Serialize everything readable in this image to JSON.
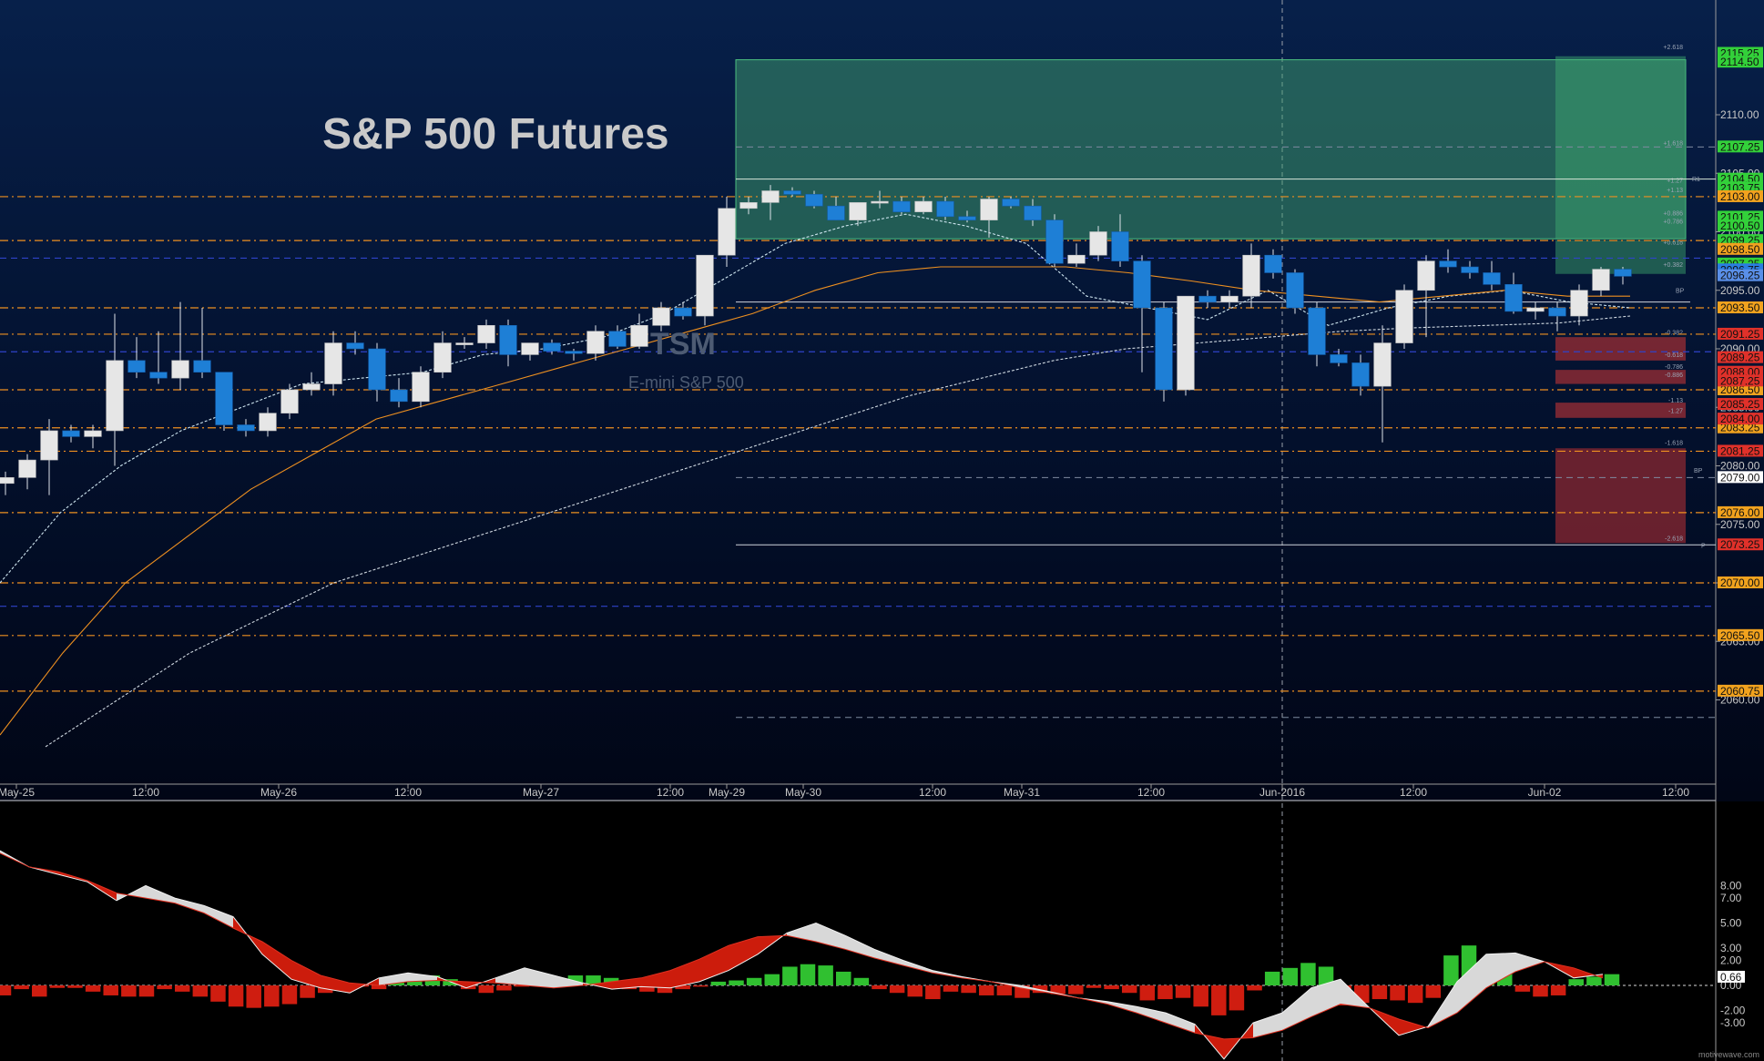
{
  "title": "S&P 500 Futures",
  "watermark": {
    "line1": "TSM",
    "line2": "E-mini S&P 500"
  },
  "footer": "motivewave.com",
  "colors": {
    "bull": "#e6e6e6",
    "bear": "#1e7fd6",
    "orange": "#ee9020",
    "blue": "#2f43c9",
    "green": "#30c030",
    "red": "#cf1d10"
  },
  "chart_data": [
    {
      "type": "candlestick",
      "title": "S&P 500 Futures",
      "xlabel": "",
      "ylabel": "",
      "ylim": [
        2056,
        2120
      ],
      "x_ticks": [
        "May-25",
        "12:00",
        "May-26",
        "12:00",
        "May-27",
        "12:00",
        "May-29",
        "May-30",
        "12:00",
        "May-31",
        "12:00",
        "Jun-2016",
        "12:00",
        "Jun-02",
        "12:00"
      ],
      "y_ticks": [
        "2060.00",
        "2065.00",
        "2070.00",
        "2075.00",
        "2080.00",
        "2085.00",
        "2090.00",
        "2095.00",
        "2100.00",
        "2105.00",
        "2110.00"
      ],
      "grid": false,
      "price_levels": [
        2115.25,
        2114.5,
        2107.25,
        2104.5,
        2103.75,
        2103.0,
        2101.25,
        2100.5,
        2099.25,
        2098.5,
        2097.25,
        2096.75,
        2096.25,
        2093.5,
        2091.25,
        2089.25,
        2088.0,
        2087.25,
        2086.5,
        2085.25,
        2084.0,
        2083.25,
        2081.25,
        2079.0,
        2076.0,
        2073.25,
        2070.0,
        2065.5,
        2060.75
      ],
      "candles_ohlc": [
        [
          2078.5,
          2079.5,
          2077.5,
          2079.0
        ],
        [
          2079.0,
          2081.0,
          2078.0,
          2080.5
        ],
        [
          2080.5,
          2084.0,
          2077.5,
          2083.0
        ],
        [
          2083.0,
          2083.5,
          2082.0,
          2082.5
        ],
        [
          2082.5,
          2083.5,
          2081.5,
          2083.0
        ],
        [
          2083.0,
          2093.0,
          2080.0,
          2089.0
        ],
        [
          2089.0,
          2091.0,
          2087.5,
          2088.0
        ],
        [
          2088.0,
          2091.5,
          2087.0,
          2087.5
        ],
        [
          2087.5,
          2094.0,
          2086.5,
          2089.0
        ],
        [
          2089.0,
          2093.5,
          2087.5,
          2088.0
        ],
        [
          2088.0,
          2087.0,
          2083.0,
          2083.5
        ],
        [
          2083.5,
          2084.0,
          2082.5,
          2083.0
        ],
        [
          2083.0,
          2085.0,
          2082.5,
          2084.5
        ],
        [
          2084.5,
          2087.0,
          2084.0,
          2086.5
        ],
        [
          2086.5,
          2088.0,
          2086.0,
          2087.0
        ],
        [
          2087.0,
          2091.5,
          2086.0,
          2090.5
        ],
        [
          2090.5,
          2091.5,
          2089.5,
          2090.0
        ],
        [
          2090.0,
          2090.5,
          2085.5,
          2086.5
        ],
        [
          2086.5,
          2087.5,
          2085.0,
          2085.5
        ],
        [
          2085.5,
          2088.5,
          2085.0,
          2088.0
        ],
        [
          2088.0,
          2091.5,
          2087.5,
          2090.5
        ],
        [
          2090.5,
          2091.0,
          2090.0,
          2090.5
        ],
        [
          2090.5,
          2092.5,
          2090.0,
          2092.0
        ],
        [
          2092.0,
          2092.5,
          2088.5,
          2089.5
        ],
        [
          2089.5,
          2090.5,
          2089.0,
          2090.5
        ],
        [
          2090.5,
          2090.8,
          2089.5,
          2089.8
        ],
        [
          2089.8,
          2090.0,
          2089.0,
          2089.6
        ],
        [
          2089.6,
          2092.0,
          2089.0,
          2091.5
        ],
        [
          2091.5,
          2092.0,
          2090.0,
          2090.2
        ],
        [
          2090.2,
          2093.0,
          2090.0,
          2092.0
        ],
        [
          2092.0,
          2094.0,
          2091.5,
          2093.5
        ],
        [
          2093.5,
          2094.0,
          2092.5,
          2092.8
        ],
        [
          2092.8,
          2098.0,
          2092.0,
          2098.0
        ],
        [
          2098.0,
          2103.0,
          2097.0,
          2102.0
        ],
        [
          2102.0,
          2103.0,
          2101.5,
          2102.5
        ],
        [
          2102.5,
          2104.0,
          2101.0,
          2103.5
        ],
        [
          2103.5,
          2103.8,
          2103.0,
          2103.2
        ],
        [
          2103.2,
          2103.5,
          2102.0,
          2102.2
        ],
        [
          2102.2,
          2103.0,
          2101.0,
          2101.0
        ],
        [
          2101.0,
          2102.5,
          2100.5,
          2102.5
        ],
        [
          2102.5,
          2103.5,
          2102.0,
          2102.6
        ],
        [
          2102.6,
          2103.0,
          2101.5,
          2101.7
        ],
        [
          2101.7,
          2103.0,
          2101.5,
          2102.6
        ],
        [
          2102.6,
          2103.0,
          2101.0,
          2101.3
        ],
        [
          2101.3,
          2101.8,
          2100.8,
          2101.0
        ],
        [
          2101.0,
          2103.0,
          2099.5,
          2102.8
        ],
        [
          2102.8,
          2103.0,
          2102.0,
          2102.2
        ],
        [
          2102.2,
          2102.8,
          2100.5,
          2101.0
        ],
        [
          2101.0,
          2101.5,
          2097.0,
          2097.3
        ],
        [
          2097.3,
          2099.0,
          2097.0,
          2098.0
        ],
        [
          2098.0,
          2100.5,
          2097.5,
          2100.0
        ],
        [
          2100.0,
          2101.5,
          2097.0,
          2097.5
        ],
        [
          2097.5,
          2098.0,
          2088.0,
          2093.5
        ],
        [
          2093.5,
          2094.0,
          2085.5,
          2086.5
        ],
        [
          2086.5,
          2094.5,
          2086.0,
          2094.5
        ],
        [
          2094.5,
          2095.0,
          2093.5,
          2094.0
        ],
        [
          2094.0,
          2095.0,
          2093.5,
          2094.5
        ],
        [
          2094.5,
          2099.0,
          2093.5,
          2098.0
        ],
        [
          2098.0,
          2098.5,
          2096.0,
          2096.5
        ],
        [
          2096.5,
          2096.8,
          2093.0,
          2093.5
        ],
        [
          2093.5,
          2094.0,
          2088.5,
          2089.5
        ],
        [
          2089.5,
          2090.0,
          2088.5,
          2088.8
        ],
        [
          2088.8,
          2089.5,
          2086.0,
          2086.8
        ],
        [
          2086.8,
          2092.0,
          2082.0,
          2090.5
        ],
        [
          2090.5,
          2095.5,
          2090.0,
          2095.0
        ],
        [
          2095.0,
          2098.0,
          2091.0,
          2097.5
        ],
        [
          2097.5,
          2098.5,
          2096.5,
          2097.0
        ],
        [
          2097.0,
          2097.5,
          2096.0,
          2096.5
        ],
        [
          2096.5,
          2097.5,
          2095.0,
          2095.5
        ],
        [
          2095.5,
          2096.5,
          2093.0,
          2093.2
        ],
        [
          2093.2,
          2094.0,
          2092.5,
          2093.5
        ],
        [
          2093.5,
          2094.0,
          2091.5,
          2092.8
        ],
        [
          2092.8,
          2095.5,
          2092.0,
          2095.0
        ],
        [
          2095.0,
          2097.0,
          2094.5,
          2096.8
        ],
        [
          2096.8,
          2097.0,
          2095.5,
          2096.2
        ]
      ],
      "moving_averages": [
        {
          "color": "#cfe6f0",
          "values": [
            2070,
            2076,
            2080,
            2083,
            2085,
            2087,
            2087.5,
            2088,
            2089.5,
            2090,
            2091,
            2093,
            2096,
            2099,
            2100.5,
            2101.5,
            2100.5,
            2099,
            2094.5,
            2093.5,
            2092.5,
            2095,
            2092,
            2093.5,
            2094.5,
            2095,
            2094,
            2093.5
          ]
        },
        {
          "color": "#ee9020",
          "values": [
            2057,
            2064,
            2070,
            2074,
            2078,
            2081,
            2084,
            2085.5,
            2087,
            2088.5,
            2090,
            2091.5,
            2093,
            2095,
            2096.5,
            2097,
            2097,
            2097,
            2096.5,
            2095.8,
            2095,
            2094.5,
            2094,
            2094.5,
            2095,
            2094.5,
            2094.5
          ]
        },
        {
          "color": "#cfd8e0",
          "values": [
            2056,
            2060,
            2064,
            2067,
            2070,
            2072,
            2074,
            2076,
            2078,
            2080,
            2082,
            2084,
            2086,
            2087.5,
            2089,
            2090,
            2090.5,
            2091,
            2091.5,
            2091.8,
            2092,
            2092.2,
            2092.8
          ]
        }
      ]
    },
    {
      "type": "bar",
      "title": "",
      "ylim": [
        -3.6,
        10
      ],
      "y_ticks": [
        "8.00",
        "7.00",
        "5.00",
        "3.00",
        "2.00",
        "0.00",
        "-2.00",
        "-3.00"
      ],
      "last_value": "0.66",
      "histogram": [
        -0.8,
        -0.3,
        -0.9,
        -0.2,
        -0.2,
        -0.5,
        -0.8,
        -0.9,
        -0.9,
        -0.3,
        -0.5,
        -0.9,
        -1.3,
        -1.7,
        -1.8,
        -1.7,
        -1.5,
        -1.0,
        -0.6,
        -0.2,
        -0.1,
        -0.3,
        0.3,
        0.7,
        0.8,
        0.5,
        -0.3,
        -0.6,
        -0.4,
        -0.1,
        0.1,
        0.6,
        0.8,
        0.8,
        0.6,
        -0.3,
        -0.5,
        -0.6,
        -0.3,
        -0.1,
        0.3,
        0.4,
        0.6,
        0.9,
        1.5,
        1.7,
        1.6,
        1.1,
        0.6,
        -0.3,
        -0.6,
        -0.9,
        -1.1,
        -0.5,
        -0.6,
        -0.8,
        -0.8,
        -1.0,
        -0.6,
        -0.7,
        -0.7,
        -0.2,
        -0.3,
        -0.6,
        -1.2,
        -1.1,
        -1.0,
        -1.7,
        -2.4,
        -2.0,
        -0.4,
        1.1,
        1.4,
        1.8,
        1.5,
        -1.6,
        -1.4,
        -1.1,
        -1.2,
        -1.4,
        -1.0,
        2.4,
        3.2,
        2.0,
        1.4,
        -0.5,
        -0.9,
        -0.8,
        0.5,
        0.7,
        0.9
      ],
      "fast_line": [
        10.8,
        9.5,
        8.9,
        8.3,
        6.8,
        8.0,
        7.0,
        6.4,
        5.5,
        2.5,
        0.5,
        -0.2,
        -0.6,
        0.6,
        1.0,
        0.7,
        -0.2,
        0.6,
        1.4,
        0.8,
        0.2,
        -0.3,
        -0.1,
        -0.2,
        0.3,
        1.2,
        2.5,
        4.2,
        5.0,
        4.0,
        2.9,
        2.0,
        1.2,
        0.7,
        0.3,
        0.0,
        -0.5,
        -1.0,
        -1.3,
        -1.7,
        -2.2,
        -3.1,
        -5.9,
        -3.0,
        -2.2,
        -0.2,
        0.5,
        -1.8,
        -4.0,
        -3.3,
        0.3,
        2.5,
        2.6,
        1.9,
        0.6,
        0.9
      ],
      "slow_line": [
        10.6,
        9.5,
        9.1,
        8.4,
        7.4,
        7.0,
        6.6,
        5.8,
        4.6,
        3.5,
        2.0,
        0.8,
        0.2,
        0.0,
        0.3,
        0.4,
        0.3,
        0.2,
        0.0,
        -0.2,
        0.0,
        0.3,
        0.6,
        1.2,
        2.1,
        3.2,
        3.9,
        4.0,
        3.5,
        2.9,
        2.2,
        1.6,
        1.0,
        0.6,
        0.3,
        -0.2,
        -0.6,
        -1.0,
        -1.5,
        -2.2,
        -3.0,
        -3.8,
        -4.3,
        -4.2,
        -3.6,
        -2.5,
        -1.5,
        -1.8,
        -2.7,
        -3.4,
        -2.2,
        -0.2,
        1.1,
        1.9,
        1.4,
        0.6,
        0.6
      ]
    }
  ]
}
